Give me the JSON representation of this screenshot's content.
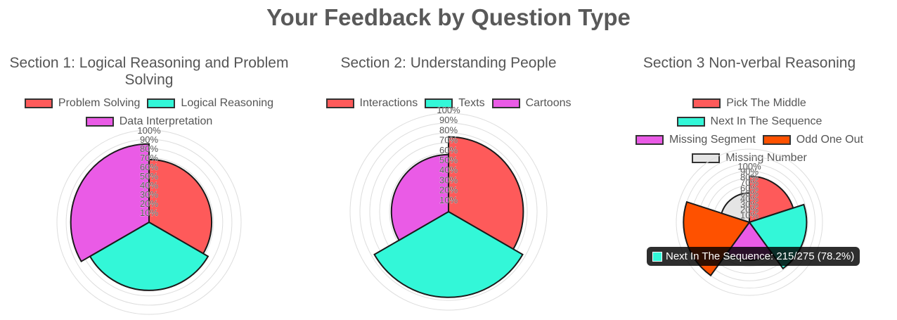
{
  "page": {
    "title": "Your Feedback by Question Type"
  },
  "chart_data": [
    {
      "type": "polarArea",
      "title": "Section 1: Logical Reasoning and Problem Solving",
      "r_range": [
        0,
        100
      ],
      "tick_labels": [
        "10%",
        "20%",
        "30%",
        "40%",
        "50%",
        "60%",
        "70%",
        "80%",
        "90%",
        "100%"
      ],
      "grid": true,
      "legend": "top",
      "categories": [
        "Problem Solving",
        "Logical Reasoning",
        "Data Interpretation"
      ],
      "values": [
        68,
        74,
        85
      ],
      "colors": [
        "#fe5a5a",
        "#33f7d8",
        "#ea5be6"
      ]
    },
    {
      "type": "polarArea",
      "title": "Section 2: Understanding People",
      "r_range": [
        0,
        100
      ],
      "tick_labels": [
        "10%",
        "20%",
        "30%",
        "40%",
        "50%",
        "60%",
        "70%",
        "80%",
        "90%",
        "100%"
      ],
      "grid": true,
      "legend": "top",
      "categories": [
        "Interactions",
        "Texts",
        "Cartoons"
      ],
      "values": [
        76,
        87,
        58
      ],
      "colors": [
        "#fe5a5a",
        "#33f7d8",
        "#ea5be6"
      ]
    },
    {
      "type": "polarArea",
      "title": "Section 3 Non-verbal Reasoning",
      "r_range": [
        0,
        100
      ],
      "tick_labels": [
        "10%",
        "20%",
        "30%",
        "40%",
        "50%",
        "60%",
        "70%",
        "80%",
        "90%",
        "100%"
      ],
      "grid": true,
      "legend": "top",
      "categories": [
        "Pick The Middle",
        "Next In The Sequence",
        "Missing Segment",
        "Odd One Out",
        "Missing Number"
      ],
      "values": [
        63,
        78.2,
        52,
        90,
        40
      ],
      "colors": [
        "#fe5a5a",
        "#33f7d8",
        "#ea5be6",
        "#fe5100",
        "#e5e5e5"
      ],
      "tooltip": {
        "label": "Next In The Sequence: 215/275 (78.2%)",
        "color": "#33f7d8"
      }
    }
  ]
}
